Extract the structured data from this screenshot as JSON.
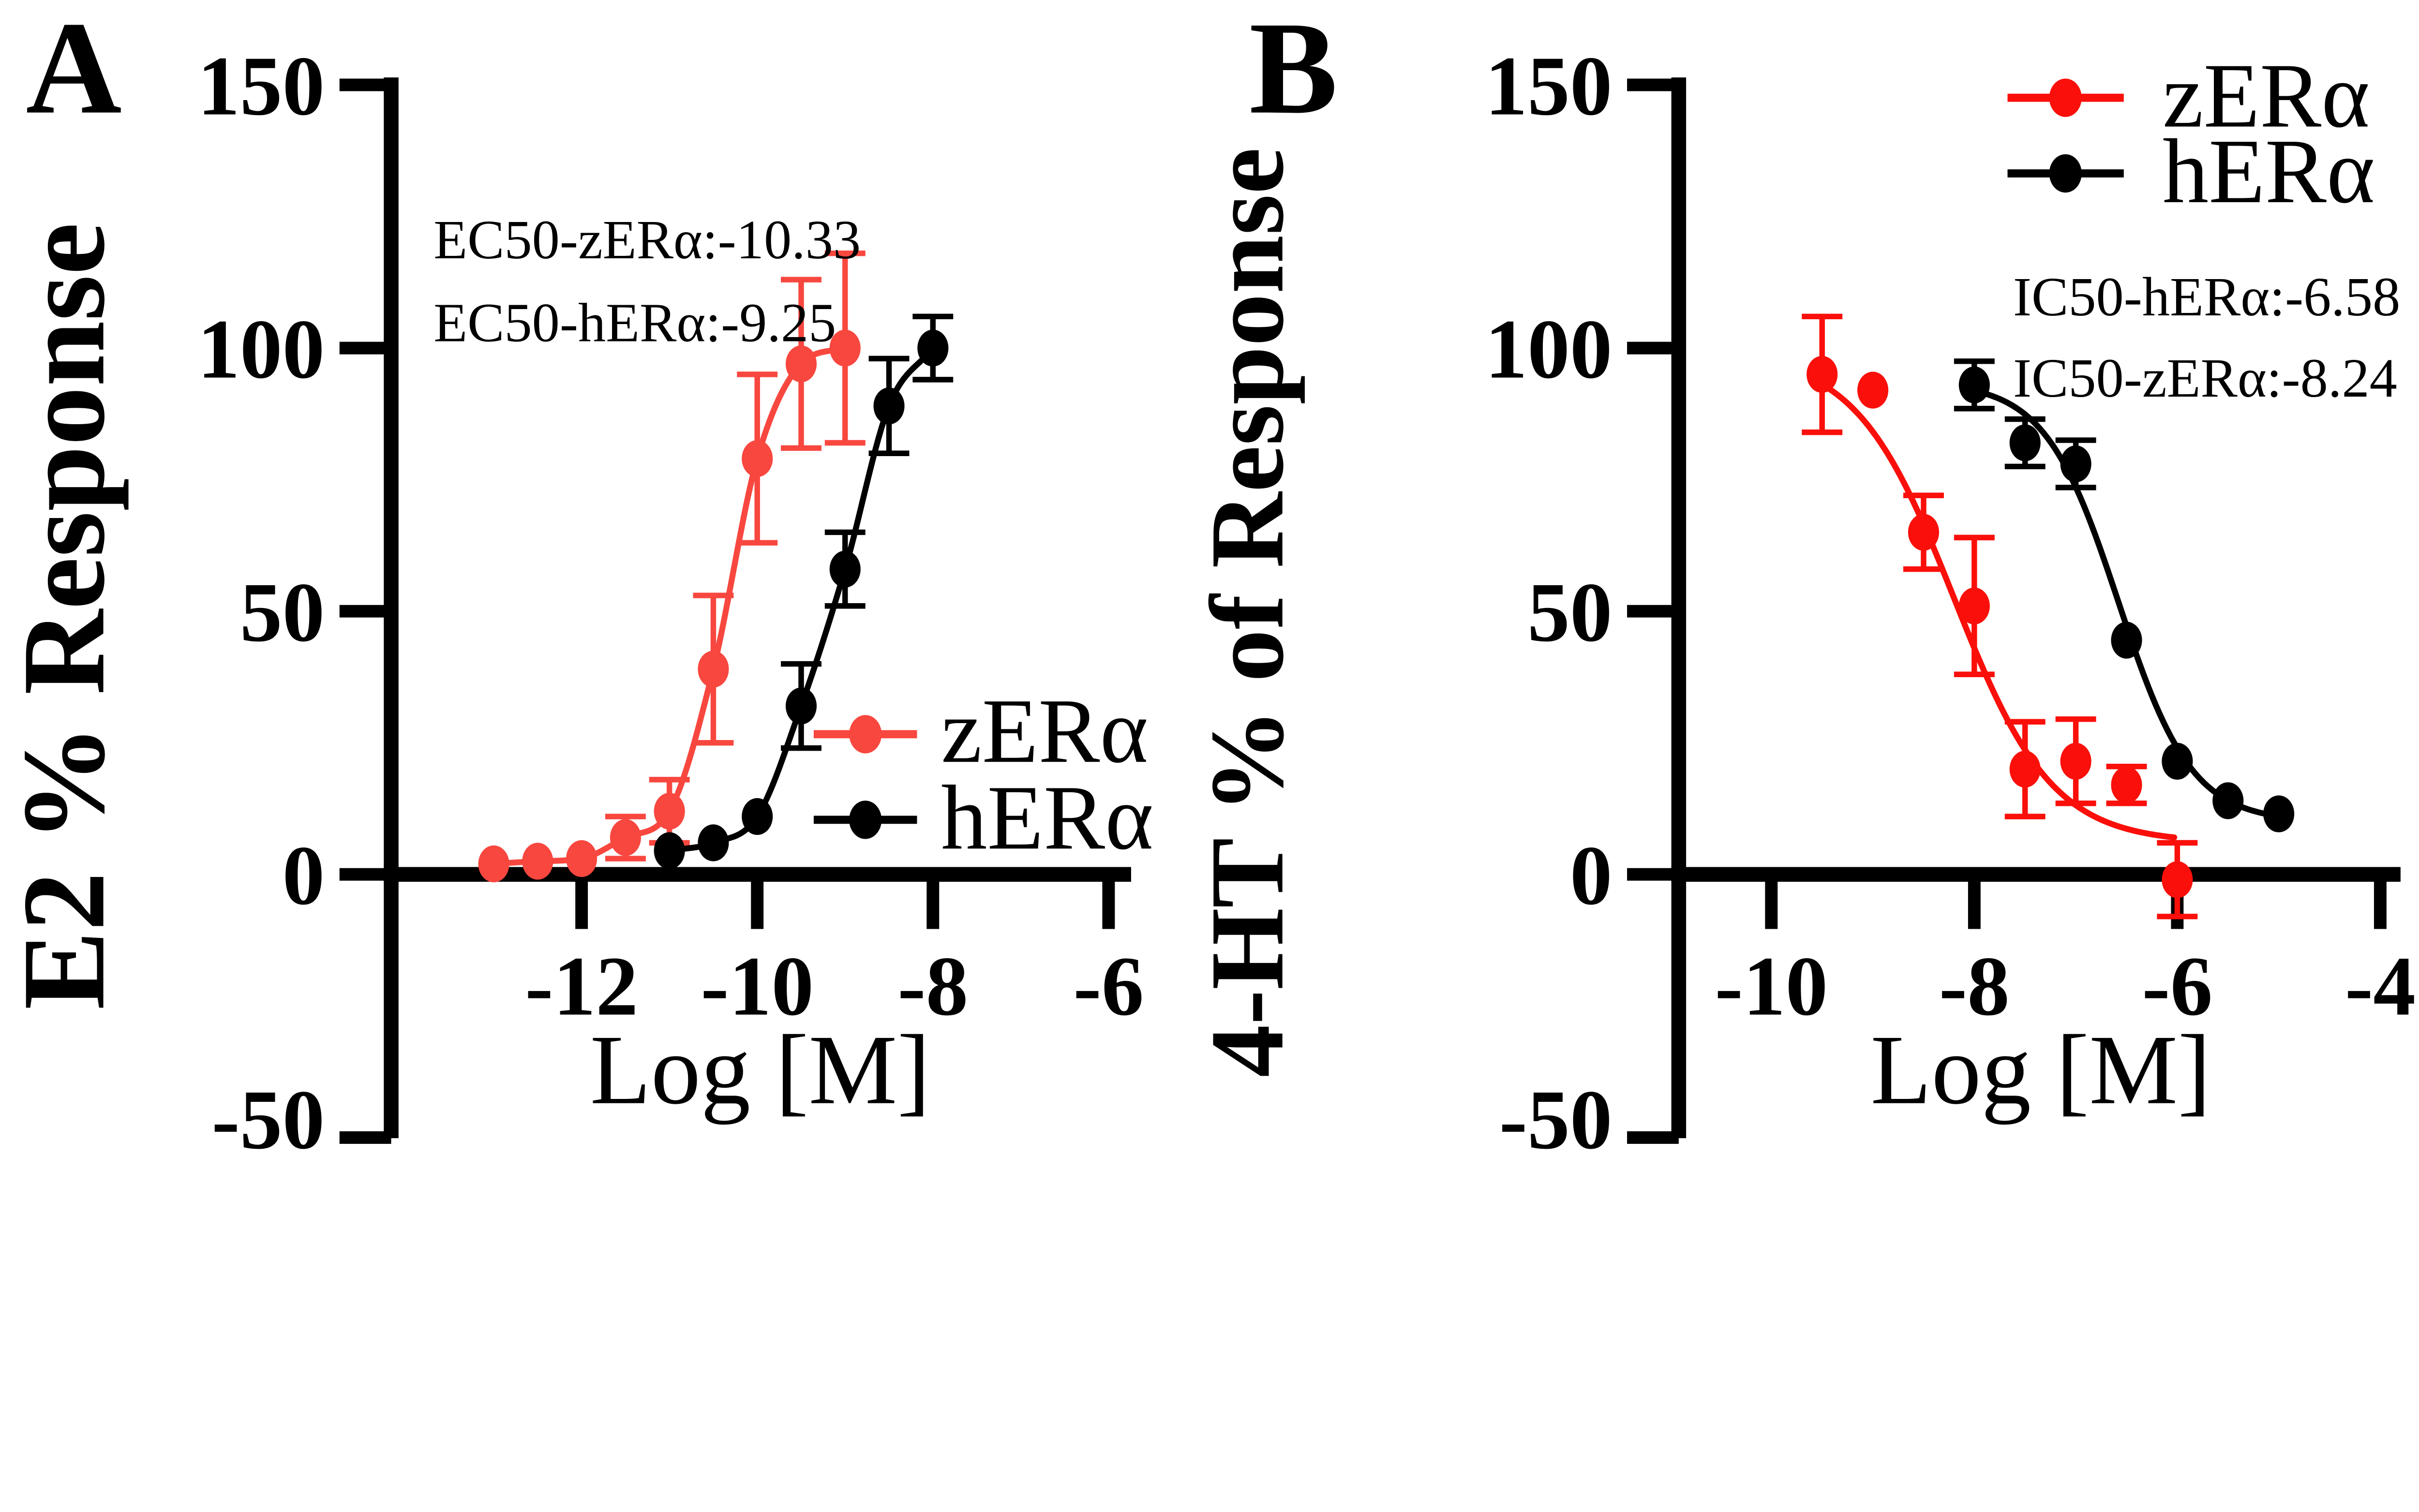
{
  "figure": {
    "background": "#ffffff",
    "description": "Two-panel dose-response figure comparing zebrafish and human estrogen receptor alpha"
  },
  "chart_data": [
    {
      "panel_letter": "A",
      "type": "scatter-line",
      "title": "",
      "xlabel": "Log [M]",
      "ylabel": "E2 % Response",
      "xlim": [
        -14.2,
        -5.7
      ],
      "ylim": [
        -50,
        150
      ],
      "x_ticks": [
        -12,
        -10,
        -8,
        -6
      ],
      "y_ticks": [
        150,
        100,
        50,
        0,
        -50
      ],
      "grid": false,
      "legend_position": "inside-right-lower",
      "annotations": [
        "EC50-zERα:-10.33",
        "EC50-hERα:-9.25"
      ],
      "ec50": {
        "zERα": -10.33,
        "hERα": -9.25
      },
      "series": [
        {
          "name": "zERα",
          "color": "#f8473f",
          "marker": "circle",
          "curve": "spline",
          "points": [
            {
              "x": -13.0,
              "y": 2,
              "err": 0
            },
            {
              "x": -12.5,
              "y": 2.5,
              "err": 0
            },
            {
              "x": -12.0,
              "y": 3,
              "err": 0
            },
            {
              "x": -11.5,
              "y": 7,
              "err": 4
            },
            {
              "x": -11.0,
              "y": 12,
              "err": 6
            },
            {
              "x": -10.5,
              "y": 39,
              "err": 14
            },
            {
              "x": -10.0,
              "y": 79,
              "err": 16
            },
            {
              "x": -9.5,
              "y": 97,
              "err": 16
            },
            {
              "x": -9.0,
              "y": 100,
              "err": 18
            }
          ]
        },
        {
          "name": "hERα",
          "color": "#000000",
          "marker": "circle",
          "curve": "spline",
          "points": [
            {
              "x": -11.0,
              "y": 4.5,
              "err": 0
            },
            {
              "x": -10.5,
              "y": 6,
              "err": 0
            },
            {
              "x": -10.0,
              "y": 11,
              "err": 0
            },
            {
              "x": -9.5,
              "y": 32,
              "err": 8
            },
            {
              "x": -9.0,
              "y": 58,
              "err": 7
            },
            {
              "x": -8.5,
              "y": 89,
              "err": 9
            },
            {
              "x": -8.0,
              "y": 100,
              "err": 6
            }
          ]
        }
      ]
    },
    {
      "panel_letter": "B",
      "type": "scatter-line",
      "title": "",
      "xlabel": "Log [M]",
      "ylabel": "4-HT % of Response",
      "xlim": [
        -10.9,
        -3.8
      ],
      "ylim": [
        -50,
        150
      ],
      "x_ticks": [
        -10,
        -8,
        -6,
        -4
      ],
      "y_ticks": [
        150,
        100,
        50,
        0,
        -50
      ],
      "grid": false,
      "legend_position": "top-right",
      "annotations": [
        "IC50-hERα:-6.58",
        "IC50-zERα:-8.24"
      ],
      "ic50": {
        "hERα": -6.58,
        "zERα": -8.24
      },
      "series": [
        {
          "name": "zERα",
          "color": "#fa0f0a",
          "marker": "circle",
          "curve": "logistic",
          "fit": {
            "top": 99,
            "bottom": 6,
            "x50": -8.2,
            "hill": 0.9
          },
          "curve_domain": [
            -9.58,
            -6.03
          ],
          "points": [
            {
              "x": -9.5,
              "y": 95,
              "err": 11
            },
            {
              "x": -9.0,
              "y": 92,
              "err": 0
            },
            {
              "x": -8.5,
              "y": 65,
              "err": 7
            },
            {
              "x": -8.0,
              "y": 51,
              "err": 13
            },
            {
              "x": -7.5,
              "y": 20,
              "err": 9
            },
            {
              "x": -7.0,
              "y": 21.5,
              "err": 8
            },
            {
              "x": -6.5,
              "y": 17,
              "err": 3.5
            },
            {
              "x": -6.0,
              "y": -1,
              "err": 7
            }
          ]
        },
        {
          "name": "hERα",
          "color": "#000000",
          "marker": "circle",
          "curve": "logistic",
          "fit": {
            "top": 93.5,
            "bottom": 10,
            "x50": -6.58,
            "hill": 1.2
          },
          "curve_domain": [
            -8.06,
            -4.92
          ],
          "points": [
            {
              "x": -8.0,
              "y": 93,
              "err": 4.5
            },
            {
              "x": -7.5,
              "y": 82,
              "err": 4.5
            },
            {
              "x": -7.0,
              "y": 78,
              "err": 4.5
            },
            {
              "x": -6.5,
              "y": 44.5,
              "err": 0
            },
            {
              "x": -6.0,
              "y": 21.5,
              "err": 0
            },
            {
              "x": -5.5,
              "y": 14,
              "err": 0
            },
            {
              "x": -5.0,
              "y": 11.5,
              "err": 0
            }
          ]
        }
      ]
    }
  ]
}
